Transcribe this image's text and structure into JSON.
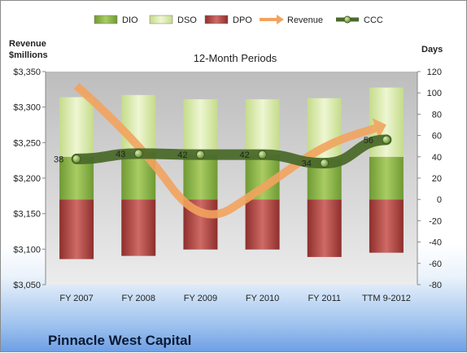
{
  "company": "Pinnacle West Capital",
  "chart_data": {
    "type": "bar",
    "title": "12-Month Periods",
    "left_axis_title_line1": "Revenue",
    "left_axis_title_line2": "$millions",
    "right_axis_title": "Days",
    "categories": [
      "FY 2007",
      "FY 2008",
      "FY 2009",
      "FY 2010",
      "FY 2011",
      "TTM 9-2012"
    ],
    "left_ylim": [
      3050,
      3350
    ],
    "left_ticks": [
      3050,
      3100,
      3150,
      3200,
      3250,
      3300,
      3350
    ],
    "left_tick_labels": [
      "$3,050",
      "$3,100",
      "$3,150",
      "$3,200",
      "$3,250",
      "$3,300",
      "$3,350"
    ],
    "right_ylim": [
      -80,
      120
    ],
    "right_ticks": [
      -80,
      -60,
      -40,
      -20,
      0,
      20,
      40,
      60,
      80,
      100,
      120
    ],
    "right_tick_labels": [
      "-80",
      "-60",
      "-40",
      "-20",
      "0",
      "20",
      "40",
      "60",
      "80",
      "100",
      "120"
    ],
    "legend_position": "top",
    "colors": {
      "DIO": "#8cb04a",
      "DSO": "#d7e8a8",
      "DPO": "#b54d4a",
      "Revenue": "#f2a35e",
      "CCC": "#4b6a2a",
      "plot_bg": "#cfcfcf"
    },
    "series": [
      {
        "name": "DIO",
        "type": "stacked-bar",
        "axis": "right",
        "values": [
          40,
          44,
          42,
          42,
          38,
          40
        ]
      },
      {
        "name": "DSO",
        "type": "stacked-bar",
        "axis": "right",
        "values": [
          56,
          54,
          52,
          52,
          57,
          65
        ]
      },
      {
        "name": "DPO",
        "type": "stacked-bar-negative",
        "axis": "right",
        "values": [
          -56,
          -53,
          -47,
          -47,
          -54,
          -50
        ]
      },
      {
        "name": "Revenue",
        "type": "line",
        "axis": "left",
        "values": [
          3330,
          3252,
          3130,
          3185,
          3248,
          3275
        ]
      },
      {
        "name": "CCC",
        "type": "line",
        "axis": "right",
        "values": [
          38,
          43,
          42,
          42,
          34,
          56
        ],
        "data_labels": [
          "38",
          "43",
          "42",
          "42",
          "34",
          "56"
        ]
      }
    ]
  }
}
